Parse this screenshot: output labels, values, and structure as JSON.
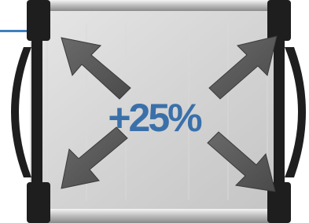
{
  "label": "+25%"
}
